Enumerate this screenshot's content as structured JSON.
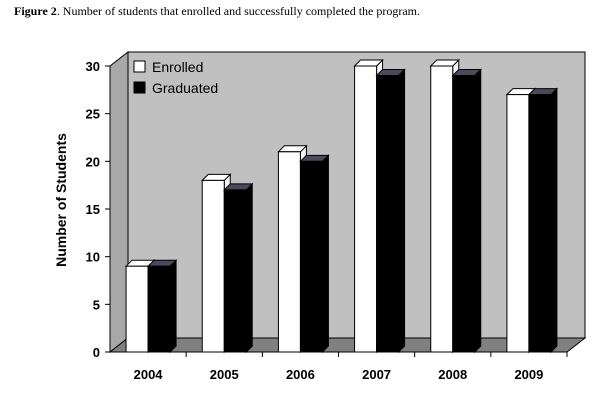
{
  "caption": {
    "label": "Figure 2",
    "text": ". Number of students that enrolled and successfully  completed the program."
  },
  "chart_data": {
    "type": "bar",
    "style": "3d-clustered",
    "title": "",
    "xlabel": "",
    "ylabel": "Number of Students",
    "categories": [
      "2004",
      "2005",
      "2006",
      "2007",
      "2008",
      "2009"
    ],
    "series": [
      {
        "name": "Enrolled",
        "values": [
          9,
          18,
          21,
          30,
          30,
          27
        ],
        "color": "#ffffff"
      },
      {
        "name": "Graduated",
        "values": [
          9,
          17,
          20,
          29,
          29,
          27
        ],
        "color": "#000000"
      }
    ],
    "ylim": [
      0,
      30
    ],
    "yticks": [
      "0",
      "5",
      "10",
      "15",
      "20",
      "25",
      "30"
    ],
    "grid": false,
    "legend_position": "top-left",
    "colors": {
      "wall": "#c0c0c0",
      "floor": "#808080",
      "frame": "#000000"
    }
  }
}
